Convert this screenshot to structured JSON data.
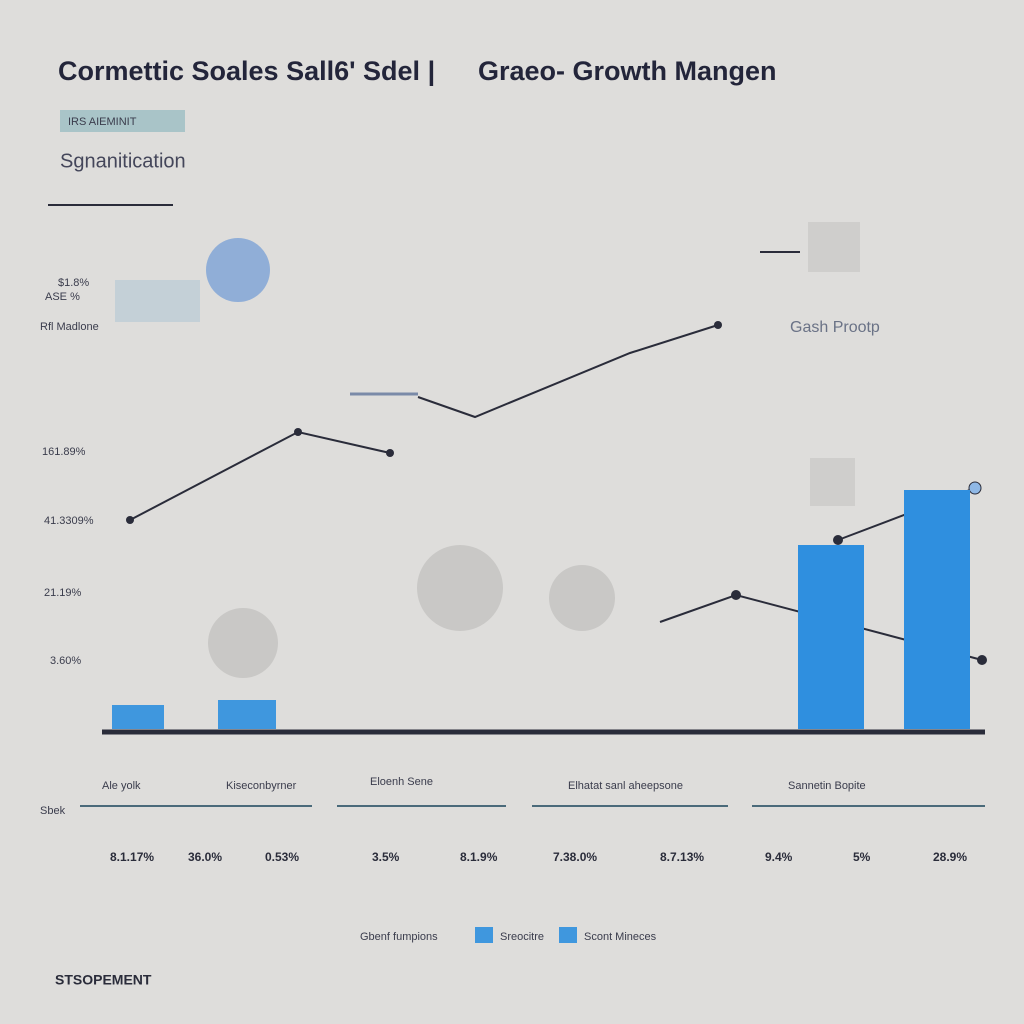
{
  "header": {
    "title_left": "Cormettic Soales Sall6' Sdel |",
    "title_right": "Graeo- Growth Mangen",
    "badge": "IRS AIEMINIT",
    "subtitle": "Sgnanitication"
  },
  "side_labels": [
    "$1.8%",
    "ASE %",
    "Rfl Madlone"
  ],
  "axis_labels": [
    "161.89%",
    "41.3309%",
    "21.19%",
    "3.60%"
  ],
  "annotation": "Gash Prootp",
  "columns": {
    "headers": [
      "Ale yolk",
      "Kiseconbyrner",
      "Eloenh Sene",
      "Elhatat sanl aheepsone",
      "Sannetin Bopite"
    ],
    "row_label": "Sbek",
    "values": [
      "8.1.17%",
      "36.0%",
      "0.53%",
      "3.5%",
      "8.1.9%",
      "7.38.0%",
      "8.7.13%",
      "9.4%",
      "5%",
      "28.9%"
    ]
  },
  "legend": [
    "Gbenf fumpions",
    "Sreocitre",
    "Scont Mineces"
  ],
  "footer": "STSOPEMENT"
}
